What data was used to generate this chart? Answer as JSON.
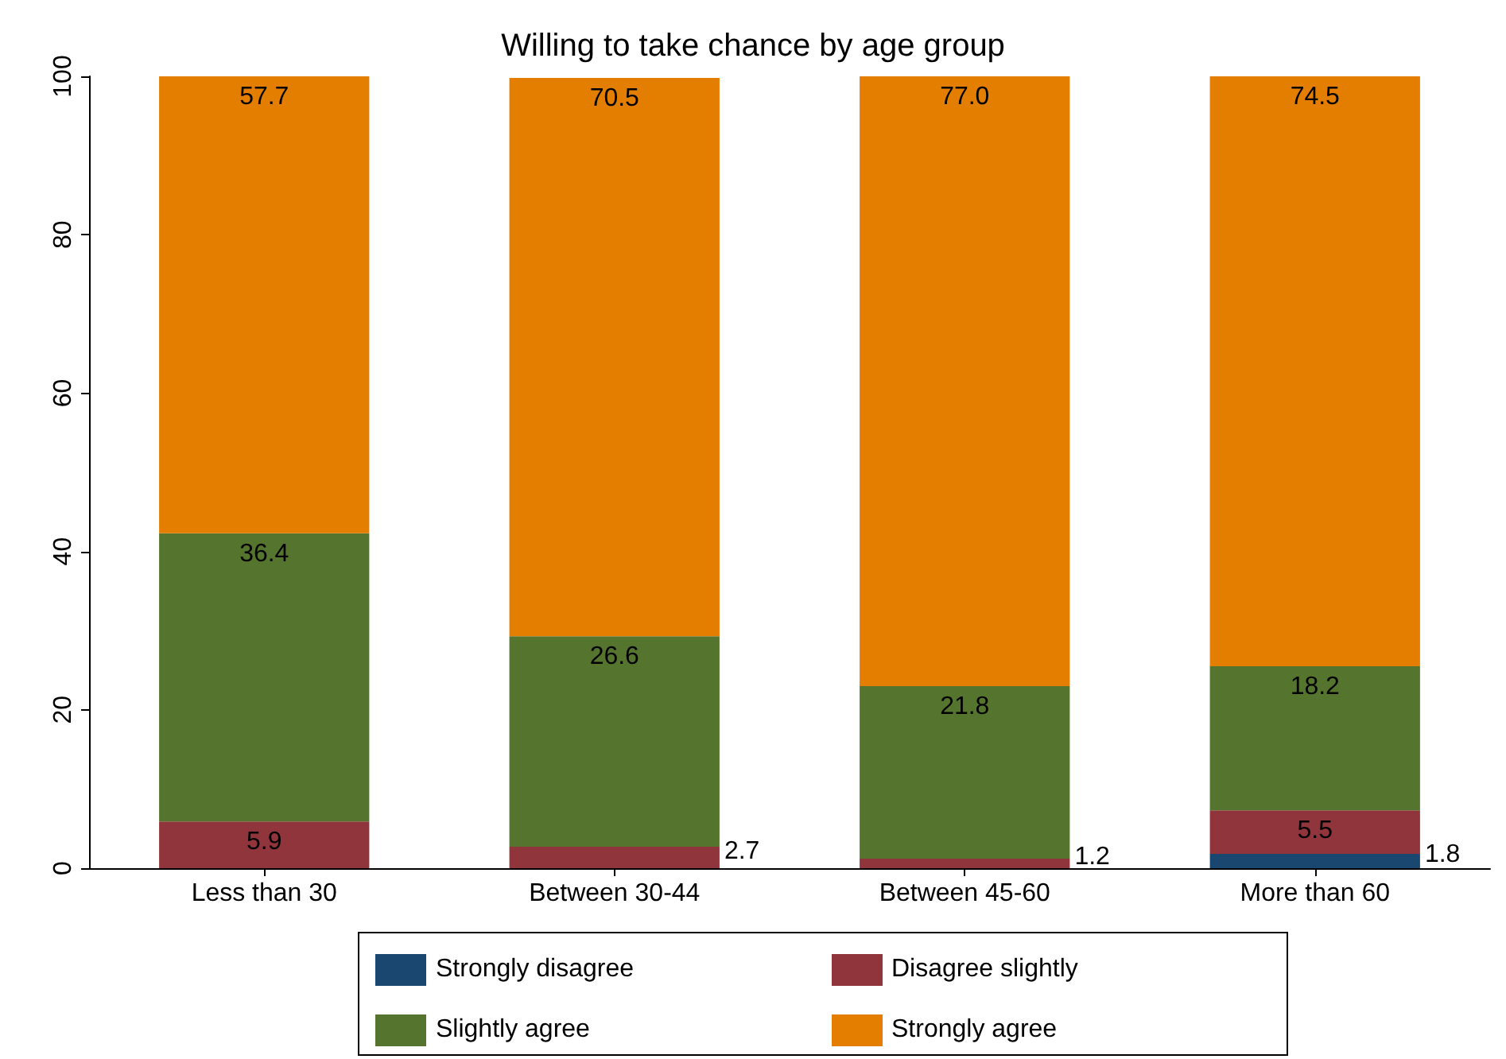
{
  "chart_data": {
    "type": "bar",
    "title": "Willing to take chance by age group",
    "stacked": true,
    "categories": [
      "Less than 30",
      "Between 30-44",
      "Between 45-60",
      "More than 60"
    ],
    "series": [
      {
        "name": "Strongly disagree",
        "color": "#1a476f",
        "values": [
          0,
          0,
          0,
          1.8
        ],
        "value_labels": [
          null,
          null,
          null,
          "1.8"
        ]
      },
      {
        "name": "Disagree slightly",
        "color": "#90353b",
        "values": [
          5.9,
          2.7,
          1.2,
          5.5
        ],
        "value_labels": [
          "5.9",
          "2.7",
          "1.2",
          "5.5"
        ]
      },
      {
        "name": "Slightly agree",
        "color": "#55752f",
        "values": [
          36.4,
          26.6,
          21.8,
          18.2
        ],
        "value_labels": [
          "36.4",
          "26.6",
          "21.8",
          "18.2"
        ]
      },
      {
        "name": "Strongly agree",
        "color": "#e37e00",
        "values": [
          57.7,
          70.5,
          77.0,
          74.5
        ],
        "value_labels": [
          "57.7",
          "70.5",
          "77.0",
          "74.5"
        ]
      }
    ],
    "ylim": [
      0,
      100
    ],
    "yticks": [
      0,
      20,
      40,
      60,
      80,
      100
    ],
    "grid": false,
    "legend": "bottom"
  }
}
